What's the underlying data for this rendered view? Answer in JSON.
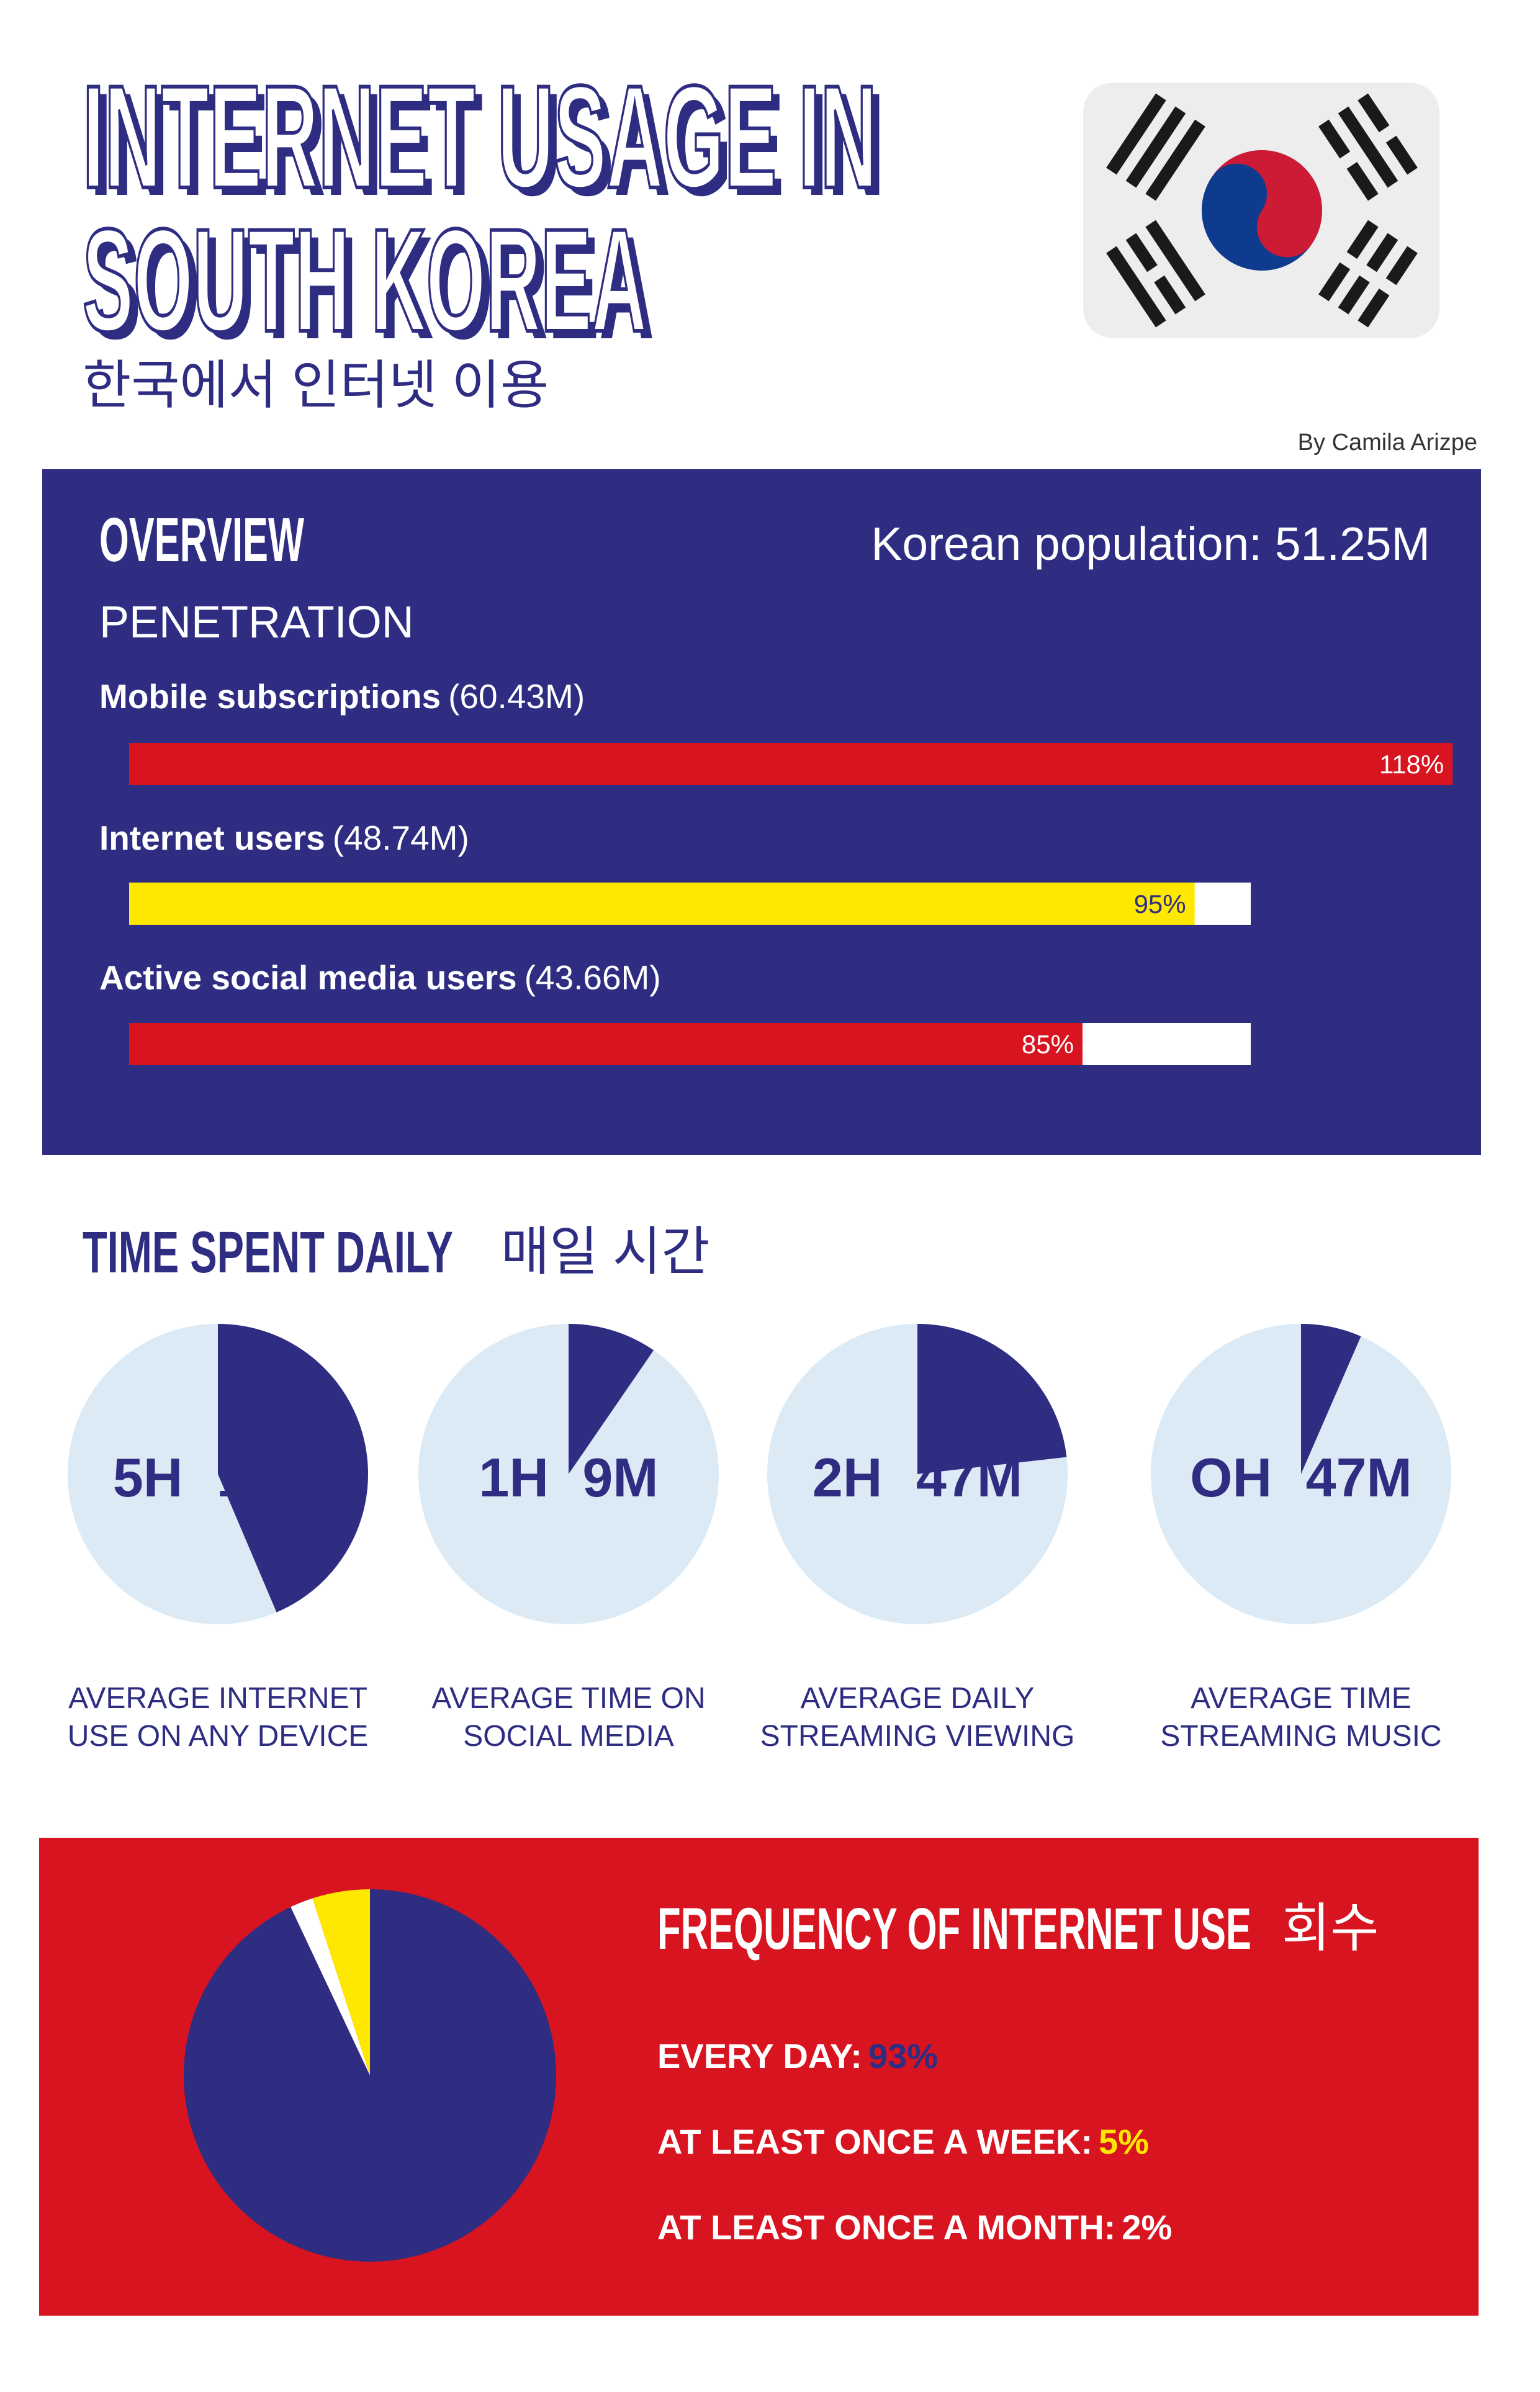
{
  "header": {
    "title_lines": [
      "INTERNET USAGE IN",
      "SOUTH KOREA"
    ],
    "subtitle_korean": "한국에서 인터넷 이용",
    "byline": "By Camila Arizpe"
  },
  "overview": {
    "title": "OVERVIEW",
    "population": "Korean population: 51.25M"
  },
  "chart_data": [
    {
      "type": "hbar",
      "title": "PENETRATION",
      "categories": [
        "Mobile subscriptions",
        "Internet users",
        "Active social media users"
      ],
      "category_notes": [
        "(60.43M)",
        "(48.74M)",
        "(43.66M)"
      ],
      "values": [
        118,
        95,
        85
      ],
      "value_labels": [
        "118%",
        "95%",
        "85%"
      ],
      "colors": [
        "#d7141f",
        "#ffe800",
        "#d7141f"
      ],
      "label_colors": [
        "#ffffff",
        "#2e2d82",
        "#ffffff"
      ],
      "track_color": "#ffffff",
      "xlim": [
        0,
        100
      ]
    },
    {
      "type": "pie-multiples",
      "title": "TIME SPENT DAILY",
      "title_korean": "매일 시간",
      "categories": [
        [
          "AVERAGE INTERNET",
          "USE ON ANY DEVICE"
        ],
        [
          "AVERAGE TIME ON",
          "SOCIAL MEDIA"
        ],
        [
          "AVERAGE DAILY",
          "STREAMING VIEWING"
        ],
        [
          "AVERAGE TIME",
          "STREAMING MUSIC"
        ]
      ],
      "values": [
        314,
        69,
        167,
        47
      ],
      "value_labels": [
        "5H 14M",
        "1H 9M",
        "2H 47M",
        "OH 47M"
      ],
      "range": [
        0,
        720
      ],
      "color": "#2e2d82",
      "background_color": "#dbeaf4"
    },
    {
      "type": "pie",
      "title": "FREQUENCY OF INTERNET USE",
      "title_korean": "회수",
      "categories": [
        "EVERY DAY:",
        "AT LEAST ONCE A WEEK:",
        "AT LEAST ONCE A MONTH:"
      ],
      "values": [
        93,
        5,
        2
      ],
      "value_labels": [
        "93%",
        "5%",
        "2%"
      ],
      "colors": [
        "#2e2d82",
        "#ffe800",
        "#ffffff"
      ]
    }
  ]
}
